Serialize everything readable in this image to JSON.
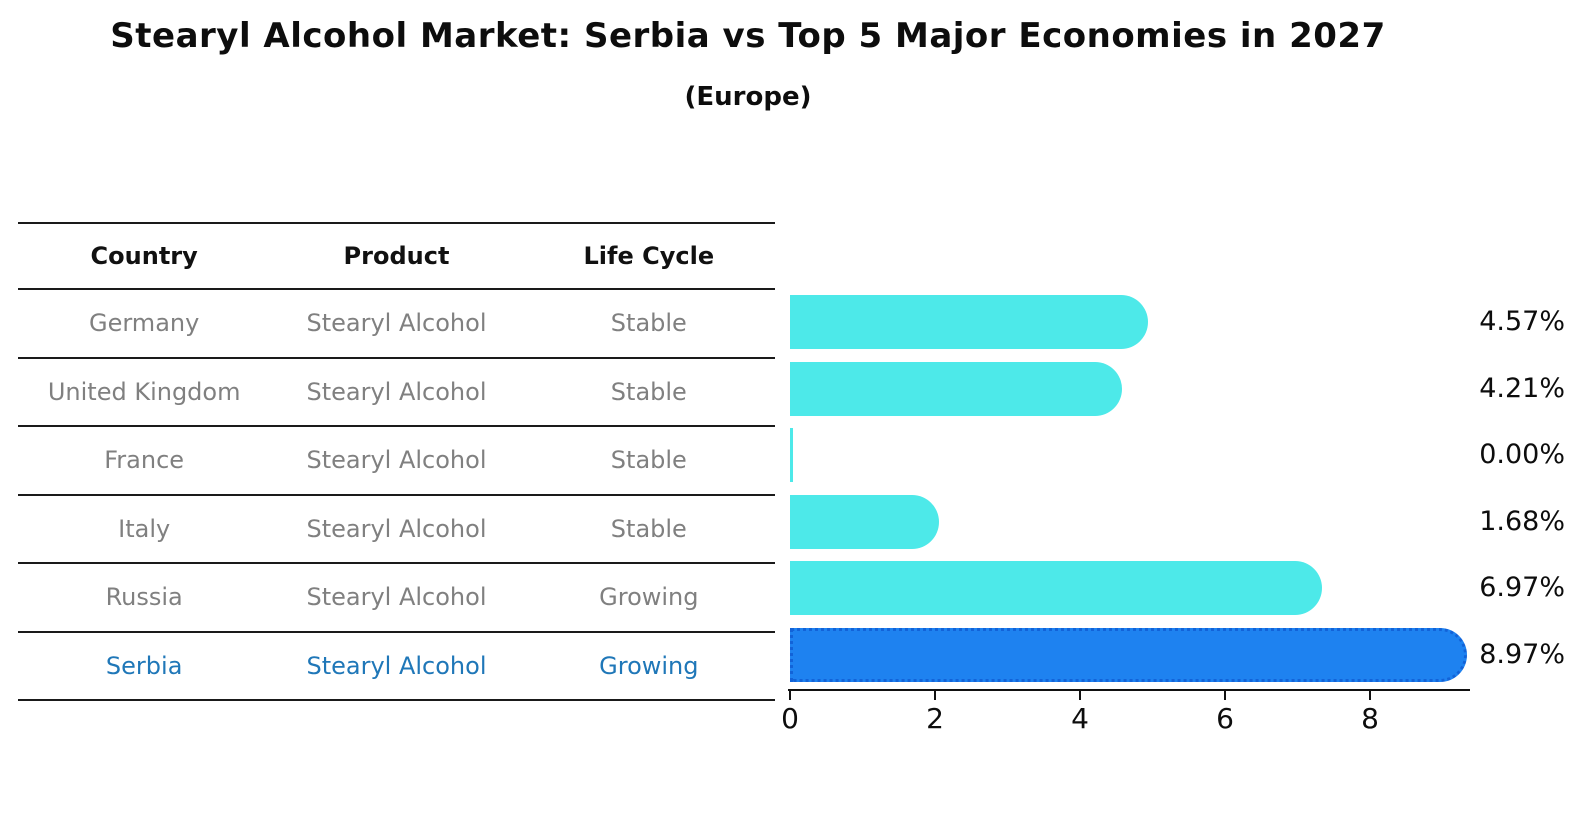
{
  "title": "Stearyl Alcohol Market: Serbia vs Top 5 Major Economies in 2027",
  "subtitle": "(Europe)",
  "table": {
    "headers": {
      "country": "Country",
      "product": "Product",
      "life_cycle": "Life Cycle"
    },
    "rows": [
      {
        "country": "Germany",
        "product": "Stearyl Alcohol",
        "life_cycle": "Stable",
        "highlighted": false
      },
      {
        "country": "United Kingdom",
        "product": "Stearyl Alcohol",
        "life_cycle": "Stable",
        "highlighted": false
      },
      {
        "country": "France",
        "product": "Stearyl Alcohol",
        "life_cycle": "Stable",
        "highlighted": false
      },
      {
        "country": "Italy",
        "product": "Stearyl Alcohol",
        "life_cycle": "Stable",
        "highlighted": false
      },
      {
        "country": "Russia",
        "product": "Stearyl Alcohol",
        "life_cycle": "Growing",
        "highlighted": false
      },
      {
        "country": "Serbia",
        "product": "Stearyl Alcohol",
        "life_cycle": "Growing",
        "highlighted": true
      }
    ]
  },
  "chart_data": {
    "type": "bar",
    "orientation": "horizontal",
    "title": "Stearyl Alcohol Market: Serbia vs Top 5 Major Economies in 2027",
    "subtitle": "(Europe)",
    "categories": [
      "Germany",
      "United Kingdom",
      "France",
      "Italy",
      "Russia",
      "Serbia"
    ],
    "values": [
      4.57,
      4.21,
      0.0,
      1.68,
      6.97,
      8.97
    ],
    "value_labels": [
      "4.57%",
      "4.21%",
      "0.00%",
      "1.68%",
      "6.97%",
      "8.97%"
    ],
    "xlabel": "",
    "ylabel": "",
    "xlim": [
      0,
      9.4
    ],
    "xticks": [
      0,
      2,
      4,
      6,
      8
    ],
    "grid": false,
    "legend": false,
    "bar_color": "#4DE9E9",
    "highlight_bar_color": "#1E82F0",
    "highlight_index": 5
  },
  "colors": {
    "background": "#ffffff",
    "text": "#0d0d0d",
    "muted_text": "#808080",
    "highlight_text": "#1f77b8",
    "axis": "#111111",
    "bar": "#4DE9E9",
    "highlight_bar": "#1E82F0"
  }
}
